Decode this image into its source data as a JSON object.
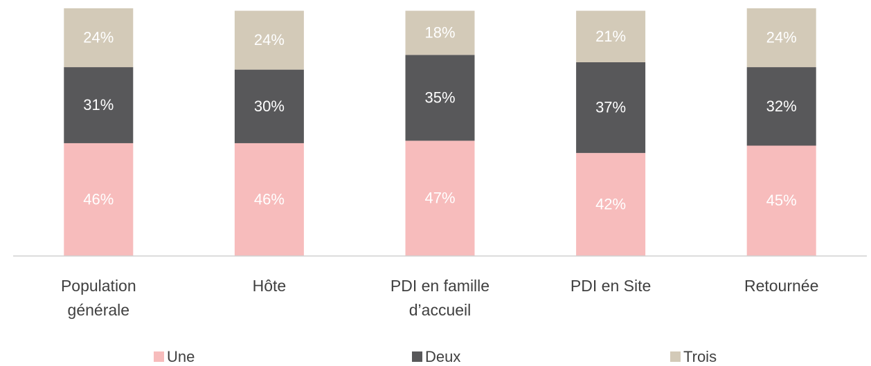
{
  "chart_data": {
    "type": "stacked_bar",
    "categories": [
      "Population générale",
      "Hôte",
      "PDI en famille d’accueil",
      "PDI en Site",
      "Retournée"
    ],
    "series": [
      {
        "name": "Une",
        "color": "#f7bcbc",
        "values": [
          46,
          46,
          47,
          42,
          45
        ]
      },
      {
        "name": "Deux",
        "color": "#58585a",
        "values": [
          31,
          30,
          35,
          37,
          32
        ]
      },
      {
        "name": "Trois",
        "color": "#d3cab8",
        "values": [
          24,
          24,
          18,
          21,
          24
        ]
      }
    ]
  }
}
